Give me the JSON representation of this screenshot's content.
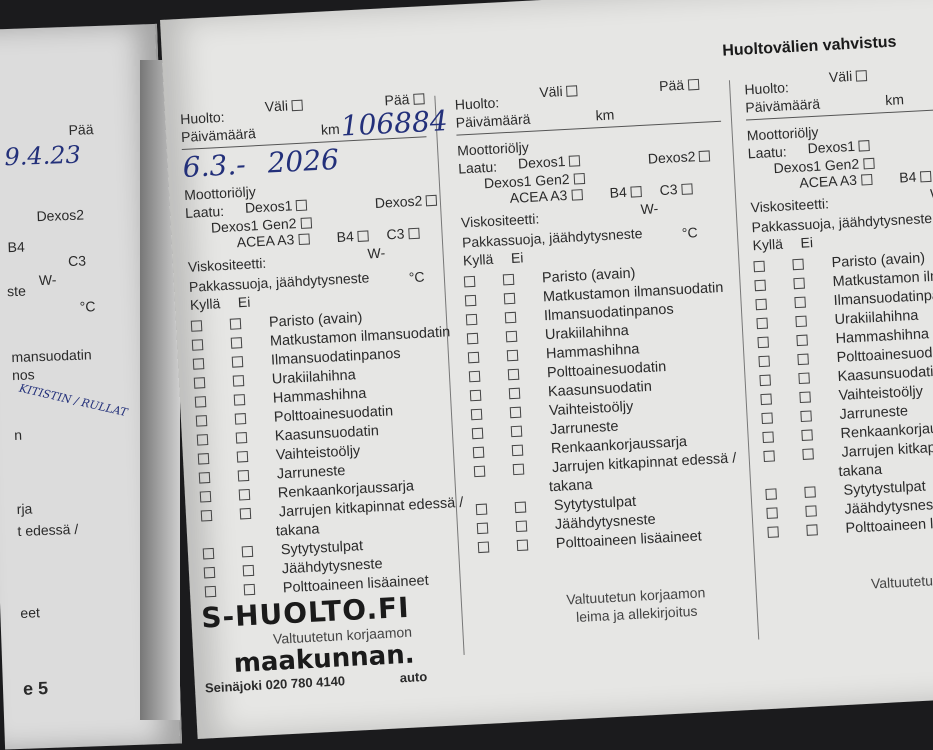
{
  "header": {
    "title": "Huoltovälien vahvistus"
  },
  "form": {
    "huolto": "Huolto:",
    "vali": "Väli",
    "paa": "Pää",
    "paivamaara": "Päivämäärä",
    "km": "km",
    "moottoriolja": "Moottoriöljy",
    "laatu": "Laatu:",
    "dexos1": "Dexos1",
    "dexos2": "Dexos2",
    "dexos1gen2": "Dexos1 Gen2",
    "acea": "ACEA A3",
    "b4": "B4",
    "c3": "C3",
    "viskositeetti": "Viskositeetti:",
    "w": "W-",
    "pakkassuoja": "Pakkassuoja, jäähdytysneste",
    "celsius": "°C",
    "kylla": "Kyllä",
    "ei": "Ei"
  },
  "checklist": [
    "Paristo (avain)",
    "Matkustamon ilmansuodatin",
    "Ilmansuodatinpanos",
    "Urakiilahihna",
    "Hammashihna",
    "Polttoainesuodatin",
    "Kaasunsuodatin",
    "Vaihteistoöljy",
    "Jarruneste",
    "Renkaankorjaussarja",
    "Jarrujen kitkapinnat edessä /",
    "takana",
    "Sytytystulpat",
    "Jäähdytysneste",
    "Polttoaineen lisäaineet"
  ],
  "signature": {
    "line1": "Valtuutetun korjaamon",
    "line2": "leima ja allekirjoitus"
  },
  "handwriting": {
    "date_day": "6.3.-",
    "date_year": "2026",
    "km_value": "106884",
    "left_date": "9.4.23",
    "left_note": "KITISTIN / RULLAT"
  },
  "stamp": {
    "brand1": "S-HUOLTO.FI",
    "brand2": "maakunnan.",
    "brand2_sub": "auto",
    "phone": "Seinäjoki 020 780 4140"
  },
  "left_page": {
    "paa": "Pää",
    "dexos2": "Dexos2",
    "b4": "B4",
    "c3": "C3",
    "w": "W-",
    "ste": "ste",
    "celsius": "°C",
    "mansuodatin": "mansuodatin",
    "nos": "nos",
    "n": "n",
    "rja": "rja",
    "edessa": "t edessä /",
    "eet": "eet",
    "page_num": "e 5"
  }
}
